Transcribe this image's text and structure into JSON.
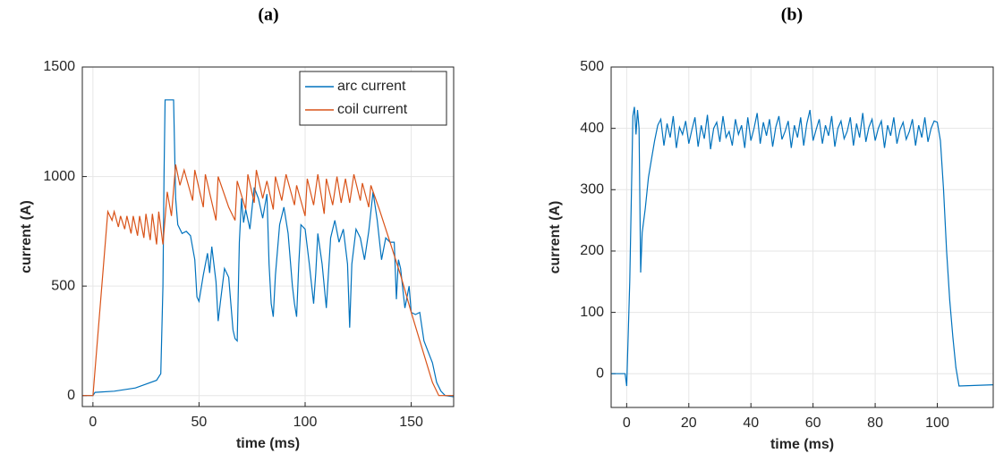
{
  "chart_data": [
    {
      "type": "line",
      "title": "(a)",
      "xlabel": "time (ms)",
      "ylabel": "current (A)",
      "xlim": [
        -5,
        170
      ],
      "ylim": [
        -50,
        1500
      ],
      "xticks": [
        0,
        50,
        100,
        150
      ],
      "yticks": [
        0,
        500,
        1000,
        1500
      ],
      "grid": true,
      "legend": "upper right",
      "series": [
        {
          "name": "arc current",
          "color": "#0072bd",
          "x": [
            -5,
            0,
            1,
            10,
            20,
            30,
            32,
            33,
            33.5,
            34,
            38,
            39,
            40,
            42,
            44,
            46,
            48,
            49,
            50,
            52,
            54,
            55,
            56,
            58,
            59,
            60,
            62,
            64,
            65,
            66,
            67,
            68,
            69,
            70,
            71,
            72,
            74,
            76,
            78,
            80,
            82,
            83,
            84,
            85,
            86,
            88,
            90,
            92,
            94,
            95,
            96,
            97,
            98,
            100,
            102,
            104,
            105,
            106,
            108,
            110,
            112,
            114,
            116,
            118,
            120,
            121,
            122,
            124,
            126,
            128,
            130,
            132,
            134,
            136,
            138,
            140,
            142,
            143,
            144,
            145,
            147,
            149,
            150,
            152,
            154,
            156,
            158,
            160,
            162,
            164,
            166,
            170
          ],
          "values": [
            0,
            0,
            15,
            20,
            35,
            70,
            100,
            500,
            1000,
            1350,
            1350,
            900,
            780,
            740,
            750,
            730,
            620,
            450,
            430,
            550,
            650,
            560,
            680,
            520,
            340,
            420,
            580,
            540,
            420,
            300,
            260,
            250,
            700,
            900,
            790,
            850,
            760,
            950,
            900,
            810,
            920,
            600,
            420,
            360,
            550,
            780,
            860,
            740,
            500,
            420,
            360,
            600,
            780,
            760,
            600,
            420,
            560,
            740,
            600,
            400,
            720,
            800,
            700,
            760,
            600,
            310,
            600,
            760,
            720,
            620,
            750,
            930,
            800,
            620,
            720,
            700,
            700,
            440,
            620,
            580,
            400,
            500,
            380,
            370,
            380,
            250,
            200,
            150,
            60,
            20,
            0,
            -5
          ]
        },
        {
          "name": "coil current",
          "color": "#d95319",
          "x": [
            -5,
            0,
            7,
            9,
            10,
            12,
            13,
            15,
            16,
            18,
            19,
            21,
            22,
            24,
            25,
            27,
            28,
            30,
            31,
            33,
            35,
            37,
            39,
            41,
            43,
            47,
            48,
            52,
            53,
            58,
            59,
            64,
            67,
            68,
            72,
            73,
            76,
            77,
            80,
            82,
            85,
            86,
            89,
            91,
            95,
            96,
            100,
            101,
            104,
            106,
            109,
            110,
            113,
            115,
            117,
            119,
            121,
            123,
            126,
            127,
            130,
            131,
            135,
            140,
            145,
            150,
            155,
            160,
            163,
            170
          ],
          "values": [
            0,
            0,
            840,
            800,
            840,
            770,
            820,
            760,
            820,
            740,
            820,
            730,
            820,
            720,
            830,
            710,
            830,
            690,
            840,
            690,
            930,
            820,
            1055,
            960,
            1030,
            890,
            1030,
            860,
            1010,
            800,
            1000,
            860,
            800,
            980,
            850,
            1010,
            880,
            1030,
            900,
            980,
            850,
            1000,
            890,
            1010,
            870,
            960,
            820,
            990,
            870,
            1010,
            830,
            990,
            870,
            1000,
            880,
            990,
            880,
            1010,
            890,
            970,
            860,
            960,
            850,
            700,
            550,
            380,
            220,
            60,
            0,
            0
          ]
        }
      ]
    },
    {
      "type": "line",
      "title": "(b)",
      "xlabel": "time (ms)",
      "ylabel": "current (A)",
      "xlim": [
        -5,
        118
      ],
      "ylim": [
        -55,
        500
      ],
      "xticks": [
        0,
        20,
        40,
        60,
        80,
        100
      ],
      "yticks": [
        0,
        100,
        200,
        300,
        400,
        500
      ],
      "grid": true,
      "series": [
        {
          "name": "current",
          "color": "#0072bd",
          "x": [
            -5,
            -0.5,
            0,
            1,
            2,
            2.5,
            3,
            3.5,
            4,
            4.5,
            5,
            6,
            7,
            8,
            9,
            10,
            11,
            12,
            13,
            14,
            15,
            16,
            17,
            18,
            19,
            20,
            21,
            22,
            23,
            24,
            25,
            26,
            27,
            28,
            29,
            30,
            31,
            32,
            33,
            34,
            35,
            36,
            37,
            38,
            39,
            40,
            41,
            42,
            43,
            44,
            45,
            46,
            47,
            48,
            49,
            50,
            51,
            52,
            53,
            54,
            55,
            56,
            57,
            58,
            59,
            60,
            61,
            62,
            63,
            64,
            65,
            66,
            67,
            68,
            69,
            70,
            71,
            72,
            73,
            74,
            75,
            76,
            77,
            78,
            79,
            80,
            81,
            82,
            83,
            84,
            85,
            86,
            87,
            88,
            89,
            90,
            91,
            92,
            93,
            94,
            95,
            96,
            97,
            98,
            99,
            100,
            101,
            102,
            103,
            104,
            105,
            106,
            107,
            118
          ],
          "values": [
            0,
            0,
            -20,
            150,
            420,
            435,
            390,
            430,
            400,
            165,
            230,
            270,
            320,
            350,
            380,
            405,
            415,
            372,
            408,
            385,
            420,
            368,
            402,
            390,
            412,
            375,
            398,
            418,
            370,
            405,
            383,
            422,
            366,
            400,
            410,
            378,
            420,
            385,
            395,
            372,
            415,
            390,
            405,
            368,
            418,
            380,
            400,
            425,
            375,
            410,
            388,
            415,
            370,
            402,
            420,
            382,
            395,
            412,
            368,
            405,
            385,
            418,
            372,
            408,
            430,
            380,
            398,
            415,
            375,
            405,
            388,
            420,
            370,
            400,
            412,
            383,
            395,
            418,
            372,
            408,
            385,
            425,
            378,
            402,
            415,
            380,
            400,
            412,
            368,
            405,
            388,
            418,
            375,
            398,
            410,
            382,
            395,
            415,
            372,
            405,
            385,
            418,
            378,
            400,
            412,
            410,
            380,
            300,
            200,
            120,
            60,
            10,
            -20,
            -18
          ]
        }
      ]
    }
  ]
}
